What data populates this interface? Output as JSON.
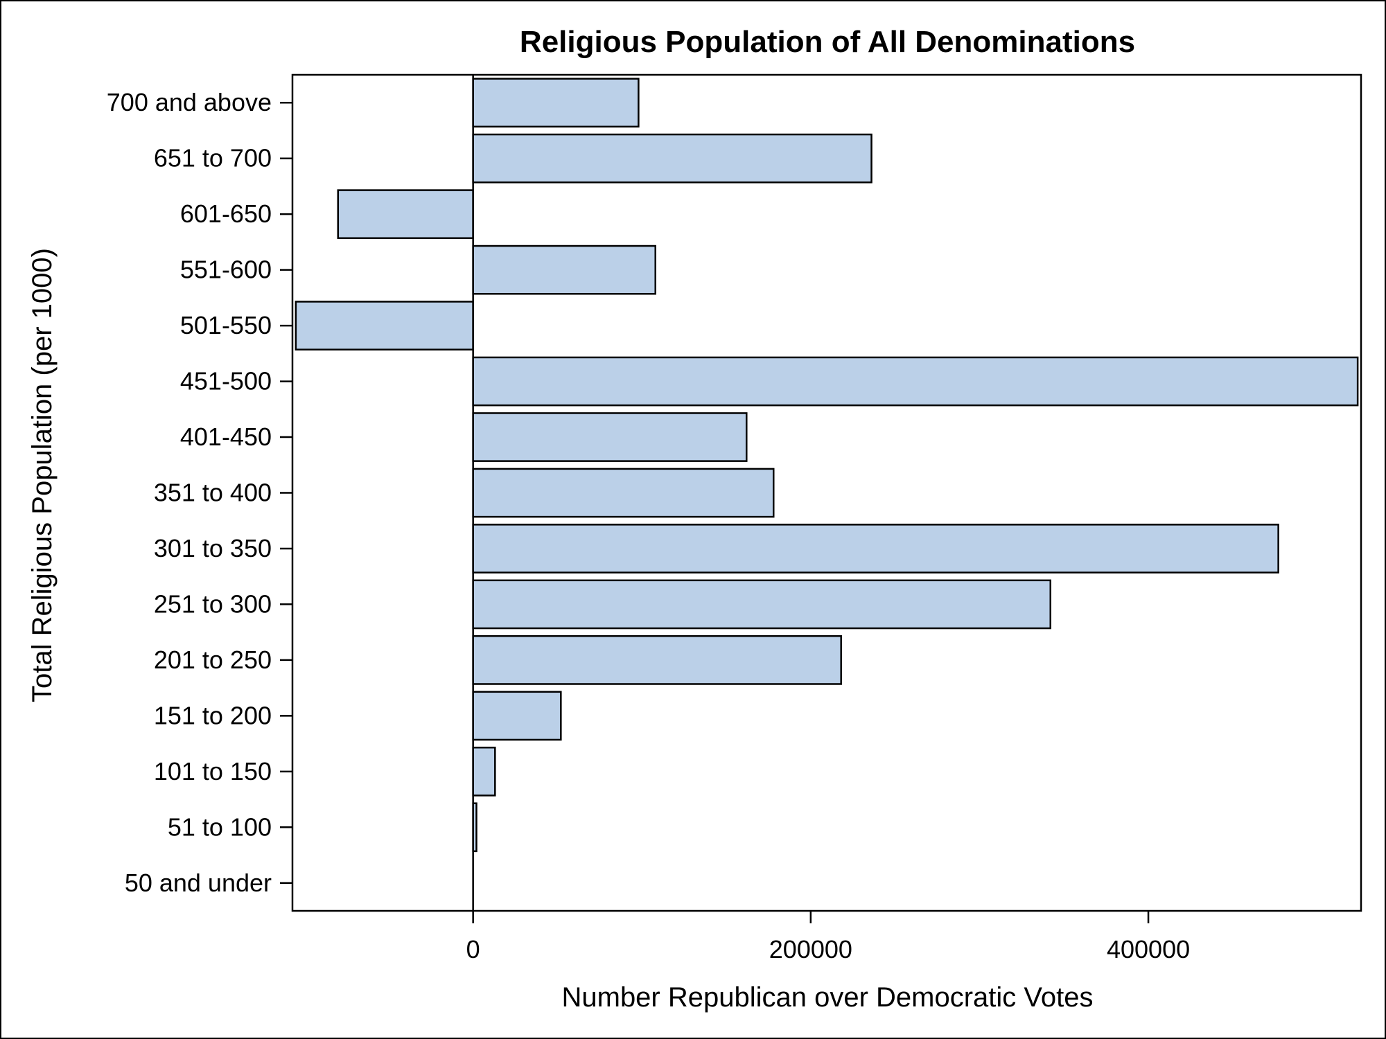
{
  "chart_data": {
    "type": "bar",
    "orientation": "horizontal",
    "title": "Religious Population of All Denominations",
    "xlabel": "Number Republican over Democratic Votes",
    "ylabel": "Total Religious Population (per 1000)",
    "categories": [
      "700 and above",
      "651 to 700",
      "601-650",
      "551-600",
      "501-550",
      "451-500",
      "401-450",
      "351 to 400",
      "301 to 350",
      "251 to 300",
      "201 to 250",
      "151 to 200",
      "101 to 150",
      "51 to 100",
      "50 and under"
    ],
    "values": [
      98000,
      236000,
      -80000,
      108000,
      -105000,
      524000,
      162000,
      178000,
      477000,
      342000,
      218000,
      52000,
      13000,
      2000,
      0
    ],
    "xlim": [
      -107000,
      526000
    ],
    "xticks": [
      0,
      200000,
      400000
    ],
    "xtick_labels": [
      "0",
      "200000",
      "400000"
    ],
    "bar_color": "#bbd0e8",
    "bar_edge_color": "#000000",
    "reference_line_at": 0,
    "grid": false,
    "legend": false
  }
}
